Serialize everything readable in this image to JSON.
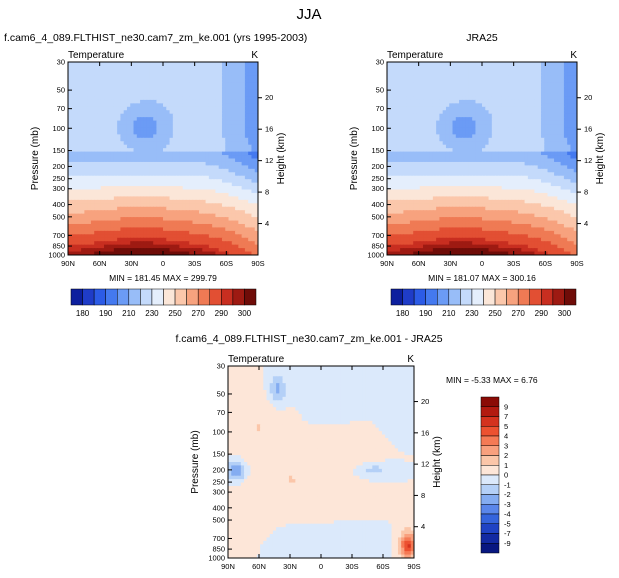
{
  "figure_title": "JJA",
  "chart_data": [
    {
      "type": "heatmap",
      "panel": "model",
      "title": "f.cam6_4_089.FLTHIST_ne30.cam7_zm_ke.001 (yrs 1995-2003)",
      "subtitle_left": "Temperature",
      "subtitle_right": "K",
      "xlabel": "",
      "ylabel": "Pressure (mb)",
      "ylabel_right": "Height (km)",
      "x_ticks": [
        "90N",
        "60N",
        "30N",
        "0",
        "30S",
        "60S",
        "90S"
      ],
      "y_ticks": [
        "30",
        "50",
        "70",
        "100",
        "150",
        "200",
        "250",
        "300",
        "400",
        "500",
        "700",
        "850",
        "1000"
      ],
      "y_ticks_right": [
        "20",
        "16",
        "12",
        "8",
        "4"
      ],
      "stats": "MIN = 181.45  MAX = 299.79",
      "colorbar_labels": [
        "180",
        "190",
        "210",
        "230",
        "250",
        "270",
        "290",
        "300"
      ],
      "field": "temperature"
    },
    {
      "type": "heatmap",
      "panel": "obs",
      "title": "JRA25",
      "subtitle_left": "Temperature",
      "subtitle_right": "K",
      "xlabel": "",
      "ylabel": "Pressure (mb)",
      "ylabel_right": "Height (km)",
      "x_ticks": [
        "90N",
        "60N",
        "30N",
        "0",
        "30S",
        "60S",
        "90S"
      ],
      "y_ticks": [
        "30",
        "50",
        "70",
        "100",
        "150",
        "200",
        "250",
        "300",
        "400",
        "500",
        "700",
        "850",
        "1000"
      ],
      "y_ticks_right": [
        "20",
        "16",
        "12",
        "8",
        "4"
      ],
      "stats": "MIN = 181.07  MAX = 300.16",
      "colorbar_labels": [
        "180",
        "190",
        "210",
        "230",
        "250",
        "270",
        "290",
        "300"
      ],
      "field": "temperature"
    },
    {
      "type": "heatmap",
      "panel": "diff",
      "title": "f.cam6_4_089.FLTHIST_ne30.cam7_zm_ke.001 - JRA25",
      "subtitle_left": "Temperature",
      "subtitle_right": "K",
      "xlabel": "",
      "ylabel": "Pressure (mb)",
      "ylabel_right": "Height (km)",
      "x_ticks": [
        "90N",
        "60N",
        "30N",
        "0",
        "30S",
        "60S",
        "90S"
      ],
      "y_ticks": [
        "30",
        "50",
        "70",
        "100",
        "150",
        "200",
        "250",
        "300",
        "400",
        "500",
        "700",
        "850",
        "1000"
      ],
      "y_ticks_right": [
        "20",
        "16",
        "12",
        "8",
        "4"
      ],
      "stats": "MIN = -5.33  MAX =  6.76",
      "colorbar_labels": [
        "9",
        "7",
        "5",
        "4",
        "3",
        "2",
        "1",
        "0",
        "-1",
        "-2",
        "-3",
        "-4",
        "-5",
        "-7",
        "-9"
      ],
      "field": "difference"
    }
  ],
  "palettes": {
    "temperature": [
      "#0d1f9e",
      "#1f3cc8",
      "#2c5be6",
      "#4479ef",
      "#6b9bf5",
      "#98bdf8",
      "#c4dafb",
      "#e4eefc",
      "#fbe6d8",
      "#fbc7ab",
      "#f7a27e",
      "#ef7a54",
      "#e24f33",
      "#c82e20",
      "#9e1a12",
      "#6f0c08"
    ],
    "difference": [
      "#8b0b06",
      "#b21a10",
      "#d4321e",
      "#ec5130",
      "#f57a55",
      "#f9a07e",
      "#fbc6a9",
      "#fde6d8",
      "#dbe9fb",
      "#b4d0f7",
      "#84acf1",
      "#5a86ea",
      "#3564dc",
      "#1f43c4",
      "#122aa2",
      "#081780"
    ]
  }
}
